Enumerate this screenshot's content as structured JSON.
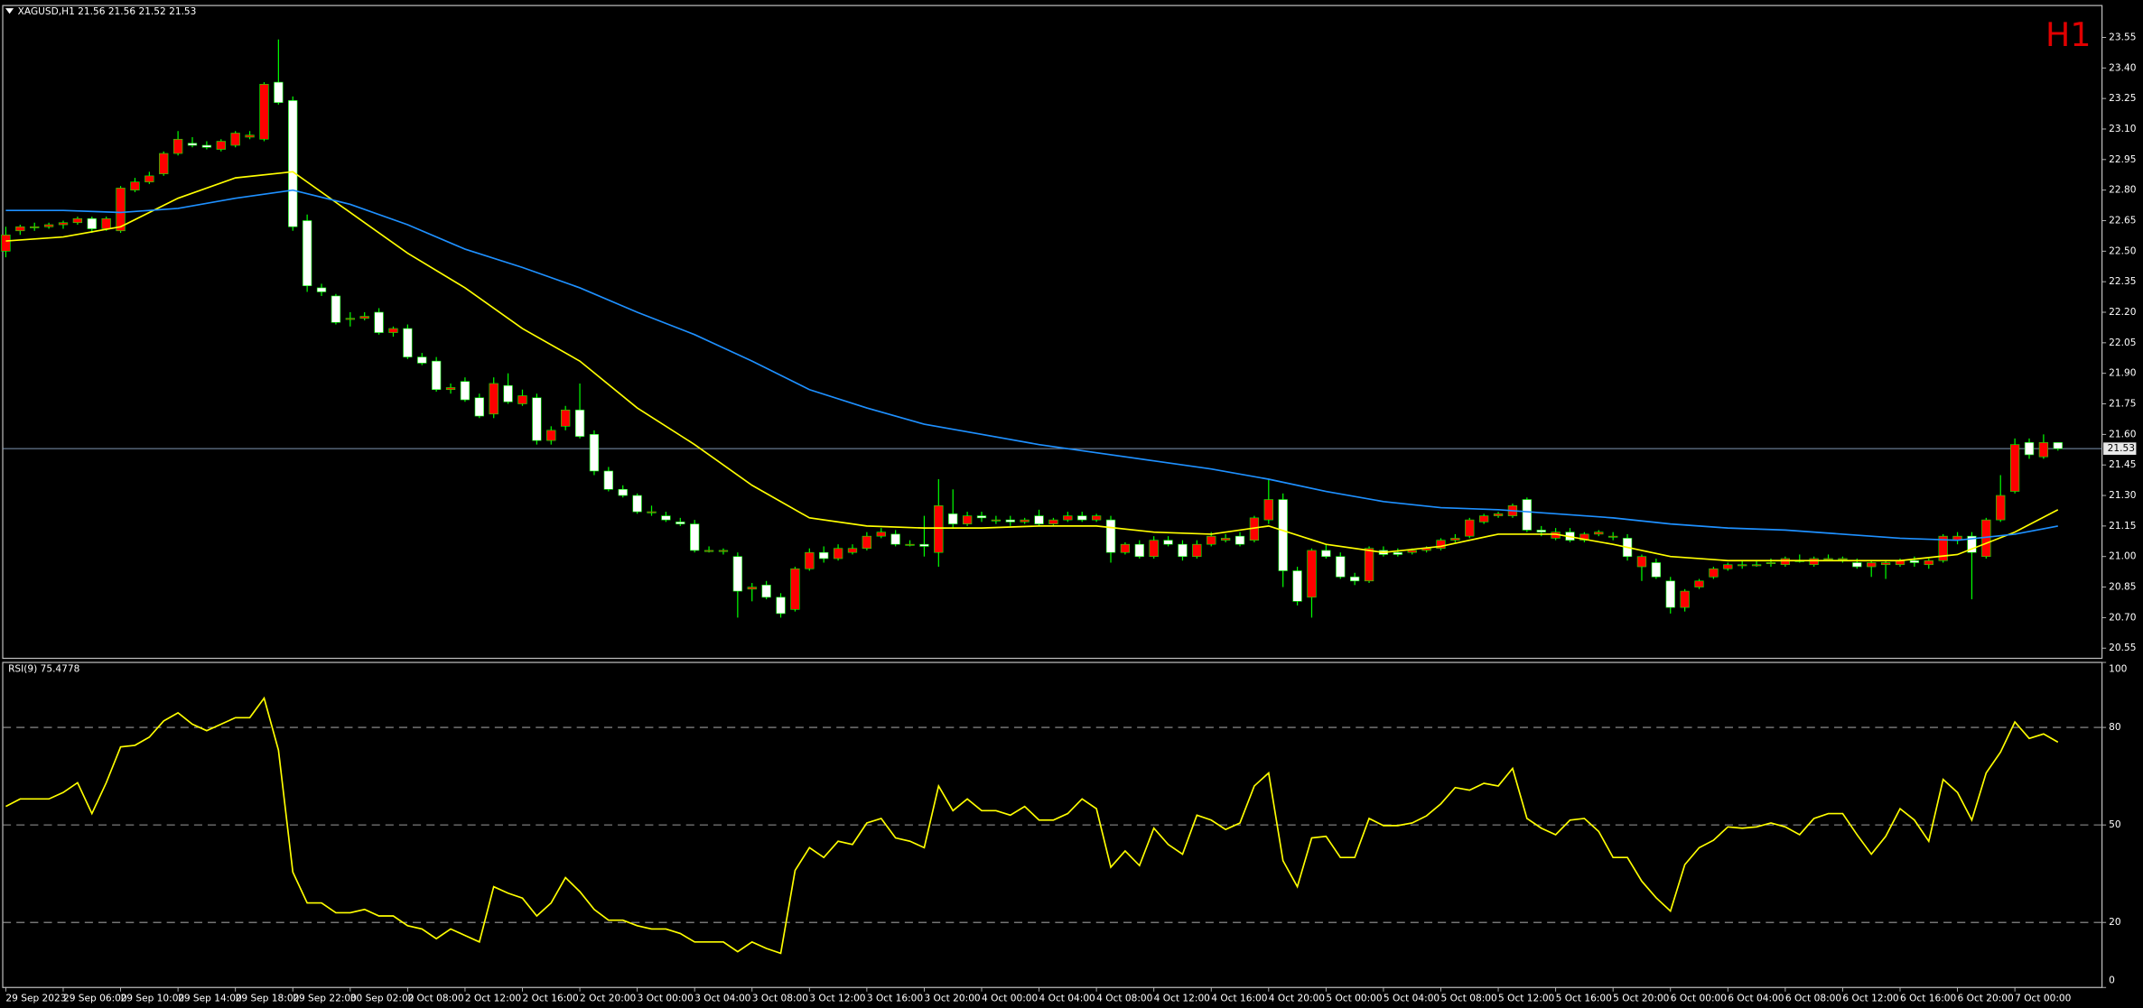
{
  "chart_data": {
    "type": "candlestick",
    "title": "XAGUSD,H1  21.56 21.56 21.52 21.53",
    "timeframe": "H1",
    "categories": [
      "29 Sep 2023",
      null,
      null,
      null,
      "29 Sep 06:00",
      null,
      null,
      null,
      "29 Sep 10:00",
      null,
      null,
      null,
      "29 Sep 14:00",
      null,
      null,
      null,
      "29 Sep 18:00",
      null,
      null,
      null,
      "29 Sep 22:00",
      null,
      null,
      null,
      "30 Sep 02:00",
      null,
      null,
      null,
      "2 Oct 08:00",
      null,
      null,
      null,
      "2 Oct 12:00",
      null,
      null,
      null,
      "2 Oct 16:00",
      null,
      null,
      null,
      "2 Oct 20:00",
      null,
      null,
      null,
      "3 Oct 00:00",
      null,
      null,
      null,
      "3 Oct 04:00",
      null,
      null,
      null,
      "3 Oct 08:00",
      null,
      null,
      null,
      "3 Oct 12:00",
      null,
      null,
      null,
      "3 Oct 16:00",
      null,
      null,
      null,
      "3 Oct 20:00",
      null,
      null,
      null,
      "4 Oct 00:00",
      null,
      null,
      null,
      "4 Oct 04:00",
      null,
      null,
      null,
      "4 Oct 08:00",
      null,
      null,
      null,
      "4 Oct 12:00",
      null,
      null,
      null,
      "4 Oct 16:00",
      null,
      null,
      null,
      "4 Oct 20:00",
      null,
      null,
      null,
      "5 Oct 00:00",
      null,
      null,
      null,
      "5 Oct 04:00",
      null,
      null,
      null,
      "5 Oct 08:00",
      null,
      null,
      null,
      "5 Oct 12:00",
      null,
      null,
      null,
      "5 Oct 16:00",
      null,
      null,
      null,
      "5 Oct 20:00",
      null,
      null,
      null,
      "6 Oct 00:00",
      null,
      null,
      null,
      "6 Oct 04:00",
      null,
      null,
      null,
      "6 Oct 08:00",
      null,
      null,
      null,
      "6 Oct 12:00",
      null,
      null,
      null,
      "6 Oct 16:00",
      null,
      null,
      null,
      "6 Oct 20:00",
      null,
      null,
      null,
      "7 Oct 00:00",
      null,
      null,
      null
    ],
    "ohlc": [
      [
        22.5,
        22.62,
        22.47,
        22.58
      ],
      [
        22.6,
        22.63,
        22.58,
        22.62
      ],
      [
        22.62,
        22.64,
        22.6,
        22.62
      ],
      [
        22.62,
        22.64,
        22.61,
        22.63
      ],
      [
        22.63,
        22.65,
        22.61,
        22.64
      ],
      [
        22.64,
        22.67,
        22.63,
        22.66
      ],
      [
        22.66,
        22.67,
        22.59,
        22.61
      ],
      [
        22.61,
        22.67,
        22.6,
        22.66
      ],
      [
        22.6,
        22.82,
        22.59,
        22.81
      ],
      [
        22.8,
        22.86,
        22.79,
        22.84
      ],
      [
        22.84,
        22.89,
        22.83,
        22.87
      ],
      [
        22.88,
        22.99,
        22.87,
        22.98
      ],
      [
        22.98,
        23.09,
        22.97,
        23.05
      ],
      [
        23.03,
        23.06,
        23.01,
        23.02
      ],
      [
        23.02,
        23.04,
        23.0,
        23.01
      ],
      [
        23.0,
        23.05,
        22.99,
        23.04
      ],
      [
        23.02,
        23.09,
        23.01,
        23.08
      ],
      [
        23.06,
        23.09,
        23.05,
        23.07
      ],
      [
        23.05,
        23.33,
        23.04,
        23.32
      ],
      [
        23.33,
        23.54,
        23.22,
        23.23
      ],
      [
        23.24,
        23.26,
        22.6,
        22.62
      ],
      [
        22.65,
        22.68,
        22.3,
        22.33
      ],
      [
        22.32,
        22.34,
        22.28,
        22.3
      ],
      [
        22.28,
        22.29,
        22.14,
        22.15
      ],
      [
        22.17,
        22.2,
        22.13,
        22.17
      ],
      [
        22.17,
        22.2,
        22.16,
        22.18
      ],
      [
        22.2,
        22.22,
        22.09,
        22.1
      ],
      [
        22.1,
        22.13,
        22.08,
        22.12
      ],
      [
        22.12,
        22.14,
        21.97,
        21.98
      ],
      [
        21.98,
        22.0,
        21.94,
        21.95
      ],
      [
        21.96,
        21.98,
        21.81,
        21.82
      ],
      [
        21.82,
        21.85,
        21.8,
        21.83
      ],
      [
        21.86,
        21.88,
        21.76,
        21.77
      ],
      [
        21.78,
        21.8,
        21.68,
        21.69
      ],
      [
        21.7,
        21.88,
        21.68,
        21.85
      ],
      [
        21.84,
        21.9,
        21.75,
        21.76
      ],
      [
        21.75,
        21.82,
        21.74,
        21.79
      ],
      [
        21.78,
        21.8,
        21.55,
        21.57
      ],
      [
        21.57,
        21.64,
        21.55,
        21.62
      ],
      [
        21.64,
        21.74,
        21.62,
        21.72
      ],
      [
        21.72,
        21.85,
        21.58,
        21.59
      ],
      [
        21.6,
        21.62,
        21.4,
        21.42
      ],
      [
        21.42,
        21.44,
        21.32,
        21.33
      ],
      [
        21.33,
        21.35,
        21.29,
        21.3
      ],
      [
        21.3,
        21.31,
        21.21,
        21.22
      ],
      [
        21.22,
        21.25,
        21.2,
        21.22
      ],
      [
        21.2,
        21.22,
        21.17,
        21.18
      ],
      [
        21.17,
        21.19,
        21.15,
        21.16
      ],
      [
        21.16,
        21.18,
        21.02,
        21.03
      ],
      [
        21.03,
        21.05,
        21.02,
        21.03
      ],
      [
        21.03,
        21.04,
        21.01,
        21.03
      ],
      [
        21.0,
        21.02,
        20.7,
        20.83
      ],
      [
        20.84,
        20.87,
        20.78,
        20.85
      ],
      [
        20.86,
        20.88,
        20.79,
        20.8
      ],
      [
        20.8,
        20.82,
        20.7,
        20.72
      ],
      [
        20.74,
        20.95,
        20.73,
        20.94
      ],
      [
        20.94,
        21.04,
        20.93,
        21.02
      ],
      [
        21.02,
        21.05,
        20.97,
        20.99
      ],
      [
        20.99,
        21.06,
        20.98,
        21.04
      ],
      [
        21.02,
        21.06,
        21.01,
        21.04
      ],
      [
        21.04,
        21.12,
        21.03,
        21.1
      ],
      [
        21.1,
        21.14,
        21.09,
        21.12
      ],
      [
        21.11,
        21.13,
        21.05,
        21.06
      ],
      [
        21.06,
        21.08,
        21.05,
        21.06
      ],
      [
        21.06,
        21.2,
        21.0,
        21.05
      ],
      [
        21.02,
        21.38,
        20.95,
        21.25
      ],
      [
        21.21,
        21.33,
        21.14,
        21.16
      ],
      [
        21.16,
        21.22,
        21.15,
        21.2
      ],
      [
        21.2,
        21.22,
        21.17,
        21.19
      ],
      [
        21.18,
        21.2,
        21.16,
        21.18
      ],
      [
        21.18,
        21.2,
        21.15,
        21.17
      ],
      [
        21.17,
        21.19,
        21.16,
        21.18
      ],
      [
        21.2,
        21.23,
        21.15,
        21.16
      ],
      [
        21.16,
        21.19,
        21.15,
        21.18
      ],
      [
        21.18,
        21.22,
        21.17,
        21.2
      ],
      [
        21.2,
        21.22,
        21.17,
        21.18
      ],
      [
        21.18,
        21.21,
        21.17,
        21.2
      ],
      [
        21.18,
        21.2,
        20.97,
        21.02
      ],
      [
        21.02,
        21.07,
        21.01,
        21.06
      ],
      [
        21.06,
        21.08,
        20.99,
        21.0
      ],
      [
        21.0,
        21.1,
        20.99,
        21.08
      ],
      [
        21.08,
        21.1,
        21.05,
        21.06
      ],
      [
        21.06,
        21.08,
        20.98,
        21.0
      ],
      [
        21.0,
        21.08,
        20.99,
        21.06
      ],
      [
        21.06,
        21.12,
        21.05,
        21.1
      ],
      [
        21.08,
        21.11,
        21.07,
        21.09
      ],
      [
        21.1,
        21.12,
        21.05,
        21.06
      ],
      [
        21.08,
        21.2,
        21.07,
        21.19
      ],
      [
        21.18,
        21.38,
        21.16,
        21.28
      ],
      [
        21.28,
        21.31,
        20.85,
        20.93
      ],
      [
        20.93,
        20.95,
        20.76,
        20.78
      ],
      [
        20.8,
        21.04,
        20.7,
        21.03
      ],
      [
        21.03,
        21.06,
        20.99,
        21.0
      ],
      [
        21.0,
        21.02,
        20.89,
        20.9
      ],
      [
        20.9,
        20.92,
        20.86,
        20.88
      ],
      [
        20.88,
        21.05,
        20.87,
        21.04
      ],
      [
        21.03,
        21.05,
        21.0,
        21.01
      ],
      [
        21.02,
        21.04,
        21.0,
        21.01
      ],
      [
        21.02,
        21.04,
        21.01,
        21.03
      ],
      [
        21.03,
        21.05,
        21.02,
        21.04
      ],
      [
        21.04,
        21.09,
        21.03,
        21.08
      ],
      [
        21.08,
        21.11,
        21.07,
        21.09
      ],
      [
        21.1,
        21.19,
        21.09,
        21.18
      ],
      [
        21.17,
        21.21,
        21.16,
        21.2
      ],
      [
        21.2,
        21.22,
        21.19,
        21.21
      ],
      [
        21.2,
        21.26,
        21.19,
        21.25
      ],
      [
        21.28,
        21.29,
        21.12,
        21.13
      ],
      [
        21.13,
        21.15,
        21.1,
        21.12
      ],
      [
        21.09,
        21.14,
        21.08,
        21.12
      ],
      [
        21.12,
        21.14,
        21.07,
        21.08
      ],
      [
        21.08,
        21.12,
        21.07,
        21.11
      ],
      [
        21.11,
        21.13,
        21.1,
        21.12
      ],
      [
        21.1,
        21.12,
        21.08,
        21.1
      ],
      [
        21.09,
        21.11,
        20.98,
        21.0
      ],
      [
        20.95,
        21.01,
        20.88,
        21.0
      ],
      [
        20.97,
        20.99,
        20.89,
        20.9
      ],
      [
        20.88,
        20.9,
        20.72,
        20.75
      ],
      [
        20.75,
        20.84,
        20.73,
        20.83
      ],
      [
        20.85,
        20.89,
        20.84,
        20.88
      ],
      [
        20.9,
        20.95,
        20.89,
        20.94
      ],
      [
        20.94,
        20.97,
        20.93,
        20.96
      ],
      [
        20.96,
        20.98,
        20.94,
        20.96
      ],
      [
        20.96,
        20.98,
        20.95,
        20.96
      ],
      [
        20.97,
        20.99,
        20.95,
        20.97
      ],
      [
        20.96,
        21.0,
        20.95,
        20.99
      ],
      [
        20.98,
        21.01,
        20.97,
        20.98
      ],
      [
        20.96,
        21.0,
        20.95,
        20.99
      ],
      [
        20.99,
        21.01,
        20.98,
        20.99
      ],
      [
        20.99,
        21.0,
        20.97,
        20.99
      ],
      [
        20.97,
        20.99,
        20.94,
        20.95
      ],
      [
        20.95,
        20.98,
        20.9,
        20.97
      ],
      [
        20.96,
        20.98,
        20.89,
        20.97
      ],
      [
        20.96,
        20.99,
        20.95,
        20.98
      ],
      [
        20.98,
        21.0,
        20.95,
        20.97
      ],
      [
        20.96,
        20.99,
        20.94,
        20.98
      ],
      [
        20.98,
        21.11,
        20.97,
        21.1
      ],
      [
        21.08,
        21.12,
        21.06,
        21.1
      ],
      [
        21.1,
        21.12,
        20.79,
        21.02
      ],
      [
        21.0,
        21.19,
        20.99,
        21.18
      ],
      [
        21.18,
        21.4,
        21.17,
        21.3
      ],
      [
        21.32,
        21.58,
        21.31,
        21.55
      ],
      [
        21.56,
        21.58,
        21.48,
        21.5
      ],
      [
        21.49,
        21.6,
        21.48,
        21.56
      ],
      [
        21.56,
        21.56,
        21.52,
        21.53
      ]
    ],
    "up_color": "#ff0000",
    "down_color": "#ffffff",
    "wick_color": "#00ff00",
    "ylim": [
      20.5,
      23.7
    ],
    "yticks": [
      20.55,
      {
        "value": 20.7,
        "label": "20.70"
      },
      20.85,
      {
        "value": 21.0,
        "label": "21.00"
      },
      21.15,
      {
        "value": 21.3,
        "label": "21.30"
      },
      21.45,
      {
        "value": 21.6,
        "label": "21.60"
      },
      21.75,
      {
        "value": 21.9,
        "label": "21.90"
      },
      22.05,
      {
        "value": 22.2,
        "label": "22.20"
      },
      22.35,
      {
        "value": 22.5,
        "label": "22.50"
      },
      22.65,
      {
        "value": 22.8,
        "label": "22.80"
      },
      22.95,
      {
        "value": 23.1,
        "label": "23.10"
      },
      23.25,
      {
        "value": 23.4,
        "label": "23.40"
      },
      23.55
    ],
    "last_price": 21.53,
    "series": [
      {
        "color": "#ffff00",
        "x": [
          0,
          4,
          8,
          12,
          16,
          20,
          24,
          28,
          32,
          36,
          40,
          44,
          48,
          52,
          56,
          60,
          64,
          68,
          72,
          76,
          80,
          84,
          88,
          92,
          96,
          100,
          104,
          108,
          112,
          116,
          120,
          124,
          128,
          132,
          136,
          140,
          143
        ],
        "values": [
          22.55,
          22.57,
          22.62,
          22.76,
          22.86,
          22.89,
          22.69,
          22.49,
          22.32,
          22.12,
          21.96,
          21.73,
          21.55,
          21.35,
          21.19,
          21.15,
          21.14,
          21.14,
          21.15,
          21.15,
          21.12,
          21.11,
          21.15,
          21.06,
          21.02,
          21.05,
          21.11,
          21.11,
          21.06,
          21.0,
          20.98,
          20.98,
          20.98,
          20.98,
          21.01,
          21.12,
          21.23
        ]
      },
      {
        "color": "#1e90ff",
        "x": [
          0,
          4,
          8,
          12,
          16,
          20,
          24,
          28,
          32,
          36,
          40,
          44,
          48,
          52,
          56,
          60,
          64,
          68,
          72,
          76,
          80,
          84,
          88,
          92,
          96,
          100,
          104,
          108,
          112,
          116,
          120,
          124,
          128,
          132,
          136,
          140,
          143
        ],
        "values": [
          22.7,
          22.7,
          22.69,
          22.71,
          22.76,
          22.8,
          22.73,
          22.63,
          22.51,
          22.42,
          22.32,
          22.2,
          22.09,
          21.96,
          21.82,
          21.73,
          21.65,
          21.6,
          21.55,
          21.51,
          21.47,
          21.43,
          21.38,
          21.32,
          21.27,
          21.24,
          21.23,
          21.21,
          21.19,
          21.16,
          21.14,
          21.13,
          21.11,
          21.09,
          21.08,
          21.11,
          21.15
        ]
      }
    ],
    "rsi": {
      "title": "RSI(9) 75.4778",
      "color": "#ffff00",
      "ylim": [
        0,
        100
      ],
      "yticks": [
        0,
        20,
        50,
        80,
        100
      ],
      "levels": [
        20,
        50,
        80
      ],
      "values": [
        55.7,
        58,
        58,
        58,
        60,
        63,
        53.5,
        63,
        74,
        74.5,
        77,
        82,
        84.5,
        81,
        79,
        81,
        83,
        83,
        89,
        73,
        35.5,
        26,
        26,
        23,
        23,
        24,
        22,
        22,
        19,
        18,
        15,
        18,
        16,
        14,
        31,
        29,
        27.5,
        22,
        26,
        33.8,
        29.5,
        24,
        20.7,
        20.7,
        19,
        18,
        18,
        16.6,
        14,
        14,
        14,
        11,
        14,
        12,
        10.5,
        36,
        43,
        40,
        45,
        44,
        50.6,
        52,
        46,
        45,
        43,
        62,
        54.4,
        58,
        54.4,
        54.4,
        53,
        55.7,
        51.5,
        51.5,
        53.5,
        58,
        55,
        37,
        42,
        37.5,
        49,
        44,
        41,
        53,
        51.5,
        48.6,
        50.6,
        62,
        66,
        39,
        31,
        46,
        46.5,
        40,
        40,
        52,
        49.8,
        49.8,
        50.6,
        52.8,
        56.5,
        61.5,
        60.7,
        62.8,
        62,
        67.4,
        52,
        49,
        47,
        51.5,
        52,
        48,
        40,
        40,
        32.7,
        27.6,
        23.5,
        37.8,
        43,
        45.3,
        49.4,
        49,
        49.4,
        50.6,
        49.4,
        47,
        52,
        53.5,
        53.5,
        47,
        41,
        46.5,
        55,
        51.5,
        45,
        64,
        60,
        51.5,
        66,
        72.4,
        81.7,
        76.6,
        78,
        75.4778
      ]
    }
  }
}
